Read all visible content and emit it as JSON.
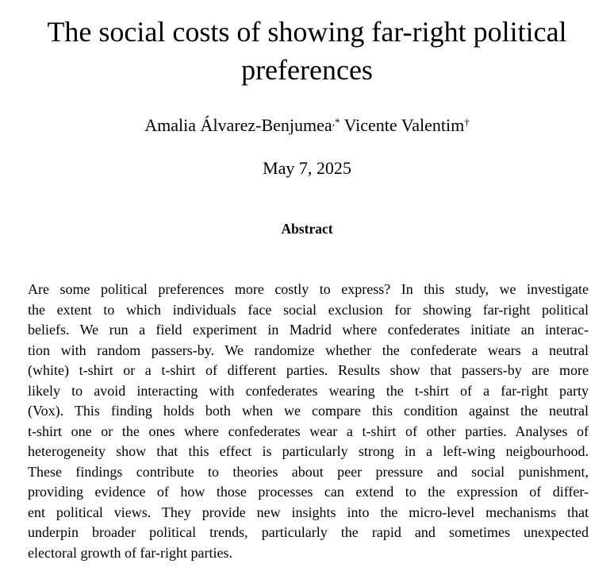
{
  "title_lines": [
    "The social costs of showing far-right political",
    "preferences"
  ],
  "authors": [
    {
      "name": "Amalia Álvarez-Benjumea",
      "mark": ",*"
    },
    {
      "name": "Vicente Valentim",
      "mark": "†"
    }
  ],
  "date": "May 7, 2025",
  "abstract_heading": "Abstract",
  "abstract_lines": [
    "Are some political preferences more costly to express? In this study, we investigate",
    "the extent to which individuals face social exclusion for showing far-right political",
    "beliefs. We run a field experiment in Madrid where confederates initiate an interac-",
    "tion with random passers-by. We randomize whether the confederate wears a neutral",
    "(white) t-shirt or a t-shirt of different parties. Results show that passers-by are more",
    "likely to avoid interacting with confederates wearing the t-shirt of a far-right party",
    "(Vox). This finding holds both when we compare this condition against the neutral",
    "t-shirt one or the ones where confederates wear a t-shirt of other parties. Analyses of",
    "heterogeneity show that this effect is particularly strong in a left-wing neigbourhood.",
    "These findings contribute to theories about peer pressure and social punishment,",
    "providing evidence of how those processes can extend to the expression of differ-",
    "ent political views. They provide new insights into the micro-level mechanisms that",
    "underpin broader political trends, particularly the rapid and sometimes unexpected",
    "electoral growth of far-right parties."
  ]
}
